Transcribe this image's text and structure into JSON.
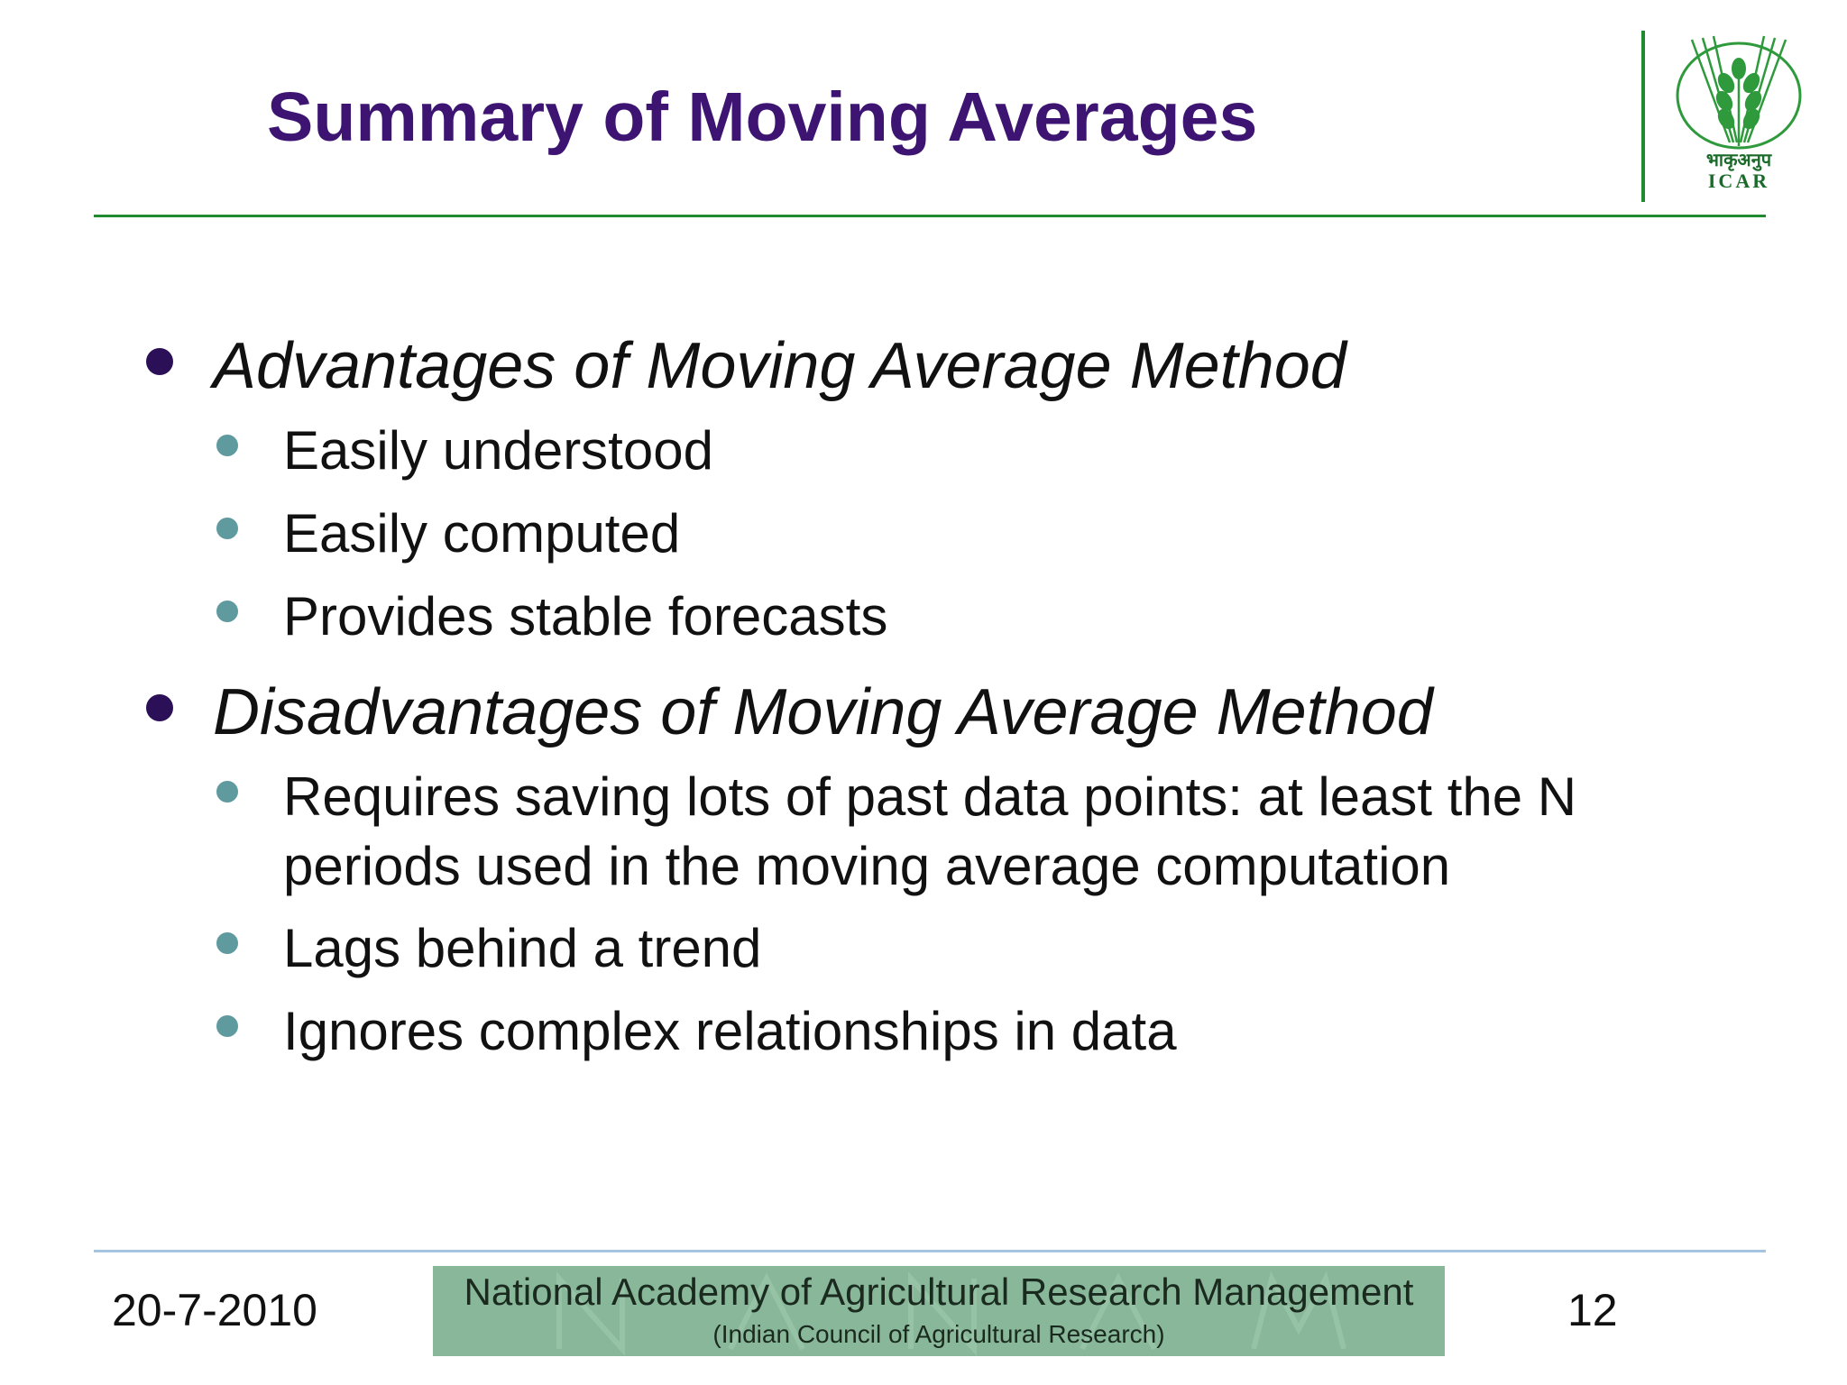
{
  "slide": {
    "title": "Summary of Moving Averages",
    "logo": {
      "hindi_text": "भाकृअनुप",
      "english_text": "ICAR",
      "icon": "wheat-emblem-icon"
    },
    "sections": [
      {
        "heading": "Advantages of Moving Average Method",
        "items": [
          "Easily understood",
          "Easily computed",
          "Provides stable forecasts"
        ]
      },
      {
        "heading": "Disadvantages of Moving Average Method",
        "items": [
          "Requires saving lots of past data points: at least the N periods used in the moving average computation",
          "Lags behind a trend",
          "Ignores complex relationships in data"
        ]
      }
    ],
    "footer": {
      "date": "20-7-2010",
      "banner_title": "National Academy of Agricultural Research Management",
      "banner_subtitle": "(Indian Council of Agricultural Research)",
      "page_number": "12"
    },
    "colors": {
      "title": "#3d1472",
      "accent_green": "#1f8a2e",
      "level1_bullet": "#2b0f57",
      "level2_bullet": "#5f9a9e",
      "banner": "#88b79a",
      "footer_rule": "#a6c4e0"
    }
  }
}
